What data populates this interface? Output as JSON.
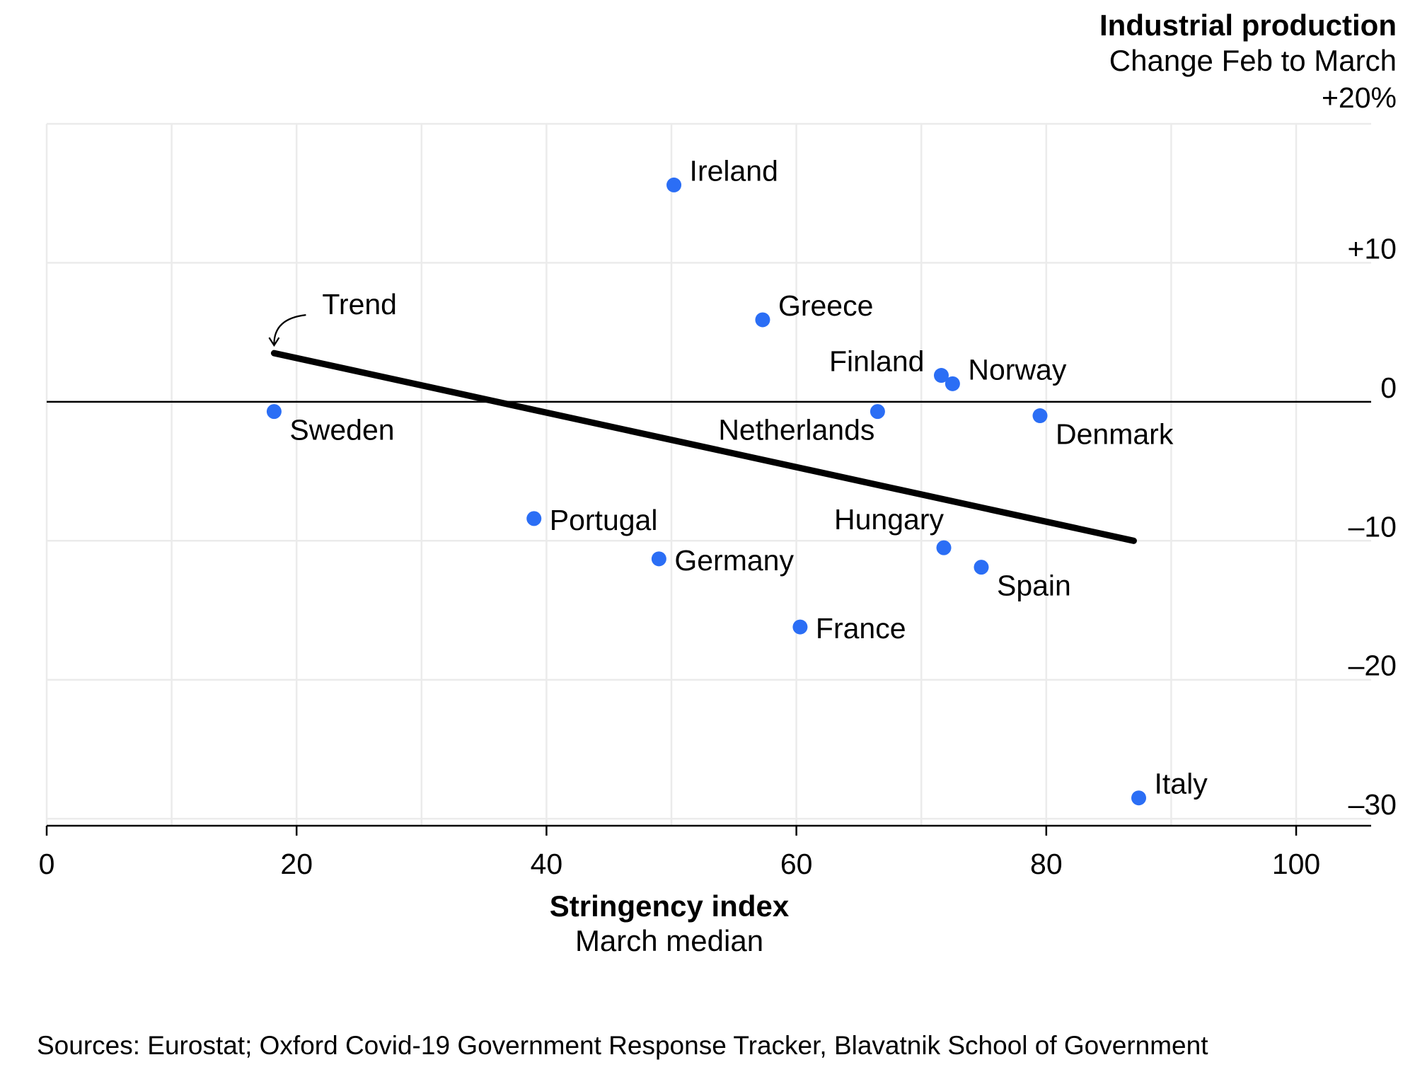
{
  "chart_data": {
    "type": "scatter",
    "y_title": "Industrial production",
    "y_subtitle": "Change Feb to March",
    "x_title": "Stringency index",
    "x_subtitle": "March median",
    "source": "Sources: Eurostat; Oxford Covid-19 Government Response Tracker, Blavatnik School of Government",
    "xlim": [
      0,
      106
    ],
    "ylim": [
      -30.5,
      20
    ],
    "x_ticks": [
      0,
      20,
      40,
      60,
      80,
      100
    ],
    "x_tick_labels": [
      "0",
      "20",
      "40",
      "60",
      "80",
      "100"
    ],
    "y_ticks": [
      20,
      10,
      0,
      -10,
      -20,
      -30
    ],
    "y_tick_labels": [
      "+20%",
      "+10",
      "0",
      "–10",
      "–20",
      "–30"
    ],
    "grid": true,
    "point_color": "#2b6ef5",
    "points": [
      {
        "label": "Ireland",
        "x": 50.2,
        "y": 15.6
      },
      {
        "label": "Greece",
        "x": 57.3,
        "y": 5.9
      },
      {
        "label": "Finland",
        "x": 71.6,
        "y": 1.9
      },
      {
        "label": "Norway",
        "x": 72.5,
        "y": 1.3
      },
      {
        "label": "Sweden",
        "x": 18.2,
        "y": -0.7
      },
      {
        "label": "Netherlands",
        "x": 66.5,
        "y": -0.7
      },
      {
        "label": "Denmark",
        "x": 79.5,
        "y": -1.0
      },
      {
        "label": "Portugal",
        "x": 39.0,
        "y": -8.4
      },
      {
        "label": "Germany",
        "x": 49.0,
        "y": -11.3
      },
      {
        "label": "Hungary",
        "x": 71.8,
        "y": -10.5
      },
      {
        "label": "Spain",
        "x": 74.8,
        "y": -11.9
      },
      {
        "label": "France",
        "x": 60.3,
        "y": -16.2
      },
      {
        "label": "Italy",
        "x": 87.4,
        "y": -28.5
      }
    ],
    "trend": {
      "label": "Trend",
      "x": [
        18.2,
        87.0
      ],
      "y": [
        3.5,
        -10.0
      ]
    }
  }
}
